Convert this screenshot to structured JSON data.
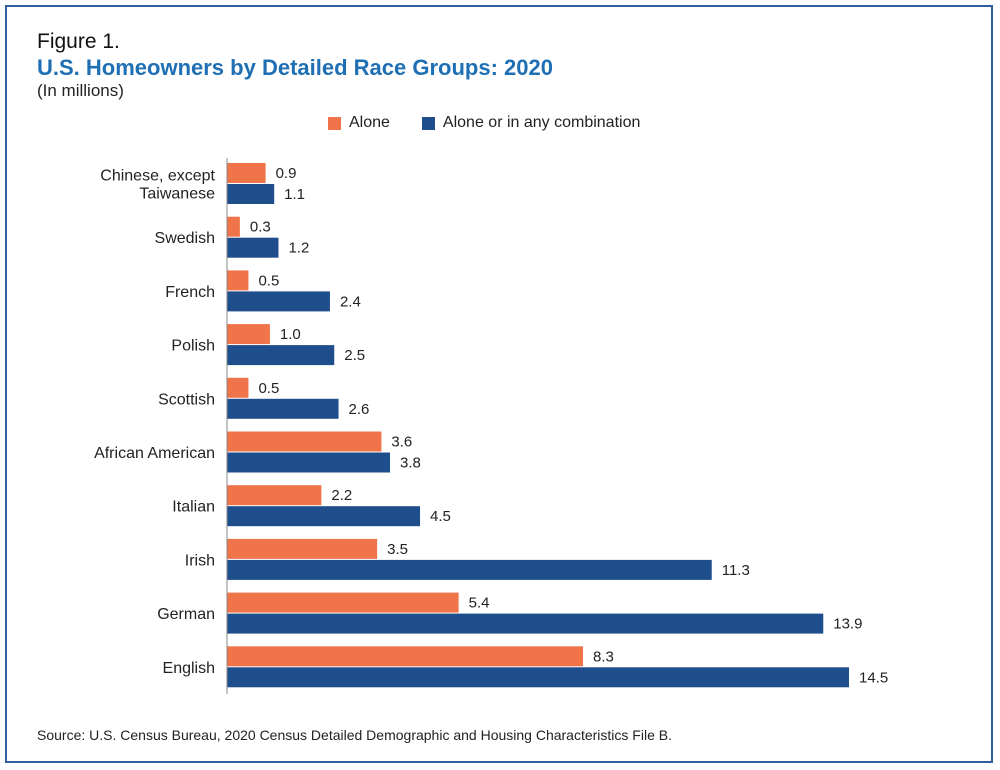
{
  "figure_label": "Figure 1.",
  "source": "Source: U.S. Census Bureau, 2020 Census Detailed Demographic and Housing Characteristics File B.",
  "colors": {
    "alone": "#f0744a",
    "combo": "#1f4e8c",
    "frame": "#2e5f9e",
    "title": "#1f6fb5"
  },
  "chart_data": {
    "type": "bar",
    "orientation": "horizontal",
    "title": "U.S. Homeowners by Detailed Race Groups: 2020",
    "subtitle": "(In millions)",
    "legend_position": "top",
    "categories": [
      [
        "Chinese, except",
        "Taiwanese"
      ],
      [
        "Swedish"
      ],
      [
        "French"
      ],
      [
        "Polish"
      ],
      [
        "Scottish"
      ],
      [
        "African American"
      ],
      [
        "Italian"
      ],
      [
        "Irish"
      ],
      [
        "German"
      ],
      [
        "English"
      ]
    ],
    "series": [
      {
        "name": "Alone",
        "values": [
          0.9,
          0.3,
          0.5,
          1.0,
          0.5,
          3.6,
          2.2,
          3.5,
          5.4,
          8.3
        ],
        "labels": [
          "0.9",
          "0.3",
          "0.5",
          "1.0",
          "0.5",
          "3.6",
          "2.2",
          "3.5",
          "5.4",
          "8.3"
        ]
      },
      {
        "name": "Alone or in any combination",
        "values": [
          1.1,
          1.2,
          2.4,
          2.5,
          2.6,
          3.8,
          4.5,
          11.3,
          13.9,
          14.5
        ],
        "labels": [
          "1.1",
          "1.2",
          "2.4",
          "2.5",
          "2.6",
          "3.8",
          "4.5",
          "11.3",
          "13.9",
          "14.5"
        ]
      }
    ],
    "xlim": [
      0,
      16
    ],
    "grid": false
  }
}
